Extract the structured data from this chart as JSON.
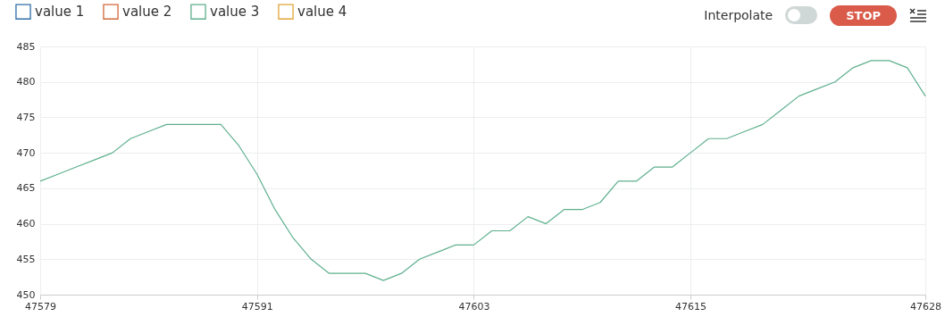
{
  "chart_data": {
    "type": "line",
    "x": [
      47579,
      47580,
      47581,
      47582,
      47583,
      47584,
      47585,
      47586,
      47587,
      47588,
      47589,
      47590,
      47591,
      47592,
      47593,
      47594,
      47595,
      47596,
      47597,
      47598,
      47599,
      47600,
      47601,
      47602,
      47603,
      47604,
      47605,
      47606,
      47607,
      47608,
      47609,
      47610,
      47611,
      47612,
      47613,
      47614,
      47615,
      47616,
      47617,
      47618,
      47619,
      47620,
      47621,
      47622,
      47623,
      47624,
      47625,
      47626,
      47627,
      47628
    ],
    "series": [
      {
        "name": "value 1",
        "color": "#2f6fa6",
        "values": [
          null,
          null,
          null,
          null,
          null,
          null,
          null,
          null,
          null,
          null,
          null,
          null,
          null,
          null,
          null,
          null,
          null,
          null,
          null,
          null,
          null,
          null,
          null,
          null,
          null,
          null,
          null,
          null,
          null,
          null,
          null,
          null,
          null,
          null,
          null,
          null,
          null,
          null,
          null,
          null,
          null,
          null,
          null,
          null,
          null,
          null,
          null,
          null,
          null,
          null
        ]
      },
      {
        "name": "value 2",
        "color": "#d2693c",
        "values": [
          null,
          null,
          null,
          null,
          null,
          null,
          null,
          null,
          null,
          null,
          null,
          null,
          null,
          null,
          null,
          null,
          null,
          null,
          null,
          null,
          null,
          null,
          null,
          null,
          null,
          null,
          null,
          null,
          null,
          null,
          null,
          null,
          null,
          null,
          null,
          null,
          null,
          null,
          null,
          null,
          null,
          null,
          null,
          null,
          null,
          null,
          null,
          null,
          null,
          null
        ]
      },
      {
        "name": "value 3",
        "color": "#5fb08e",
        "values": [
          466,
          467,
          468,
          469,
          470,
          472,
          473,
          474,
          474,
          474,
          474,
          471,
          467,
          462,
          458,
          455,
          453,
          453,
          453,
          452,
          453,
          455,
          456,
          457,
          457,
          459,
          459,
          461,
          460,
          462,
          462,
          463,
          466,
          466,
          468,
          468,
          470,
          472,
          472,
          473,
          474,
          476,
          478,
          479,
          480,
          482,
          483,
          483,
          482,
          478
        ]
      },
      {
        "name": "value 4",
        "color": "#e2a63a",
        "values": [
          null,
          null,
          null,
          null,
          null,
          null,
          null,
          null,
          null,
          null,
          null,
          null,
          null,
          null,
          null,
          null,
          null,
          null,
          null,
          null,
          null,
          null,
          null,
          null,
          null,
          null,
          null,
          null,
          null,
          null,
          null,
          null,
          null,
          null,
          null,
          null,
          null,
          null,
          null,
          null,
          null,
          null,
          null,
          null,
          null,
          null,
          null,
          null,
          null,
          null
        ]
      }
    ],
    "xlim": [
      47579,
      47628
    ],
    "xticks": [
      47579,
      47591,
      47603,
      47615,
      47628
    ],
    "ylim": [
      450,
      485
    ],
    "yticks": [
      450,
      455,
      460,
      465,
      470,
      475,
      480,
      485
    ],
    "grid": true,
    "legend": "top left",
    "marker": "none",
    "line_style": "solid",
    "annotations": [
      "Interpolate",
      "STOP"
    ]
  }
}
